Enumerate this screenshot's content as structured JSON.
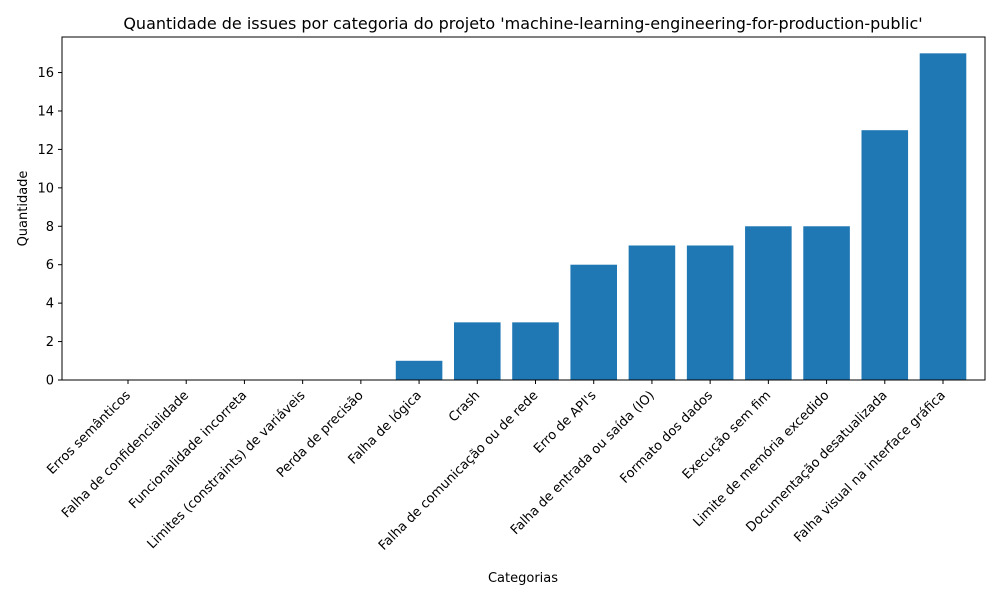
{
  "chart_data": {
    "type": "bar",
    "title": "Quantidade de issues por categoria do projeto 'machine-learning-engineering-for-production-public'",
    "xlabel": "Categorias",
    "ylabel": "Quantidade",
    "categories": [
      "Erros semânticos",
      "Falha de confidencialidade",
      "Funcionalidade incorreta",
      "Limites (constraints) de variáveis",
      "Perda de precisão",
      "Falha de lógica",
      "Crash",
      "Falha de comunicação ou de rede",
      "Erro de API's",
      "Falha de entrada ou saída (IO)",
      "Formato dos dados",
      "Execução sem fim",
      "Limite de memória excedido",
      "Documentação desatualizada",
      "Falha visual na interface gráfica"
    ],
    "values": [
      0,
      0,
      0,
      0,
      0,
      1,
      3,
      3,
      6,
      7,
      7,
      8,
      8,
      13,
      17
    ],
    "yticks": [
      0,
      2,
      4,
      6,
      8,
      10,
      12,
      14,
      16
    ],
    "ylim": [
      0,
      17.85
    ],
    "grid": false,
    "color": "#1f77b4"
  }
}
